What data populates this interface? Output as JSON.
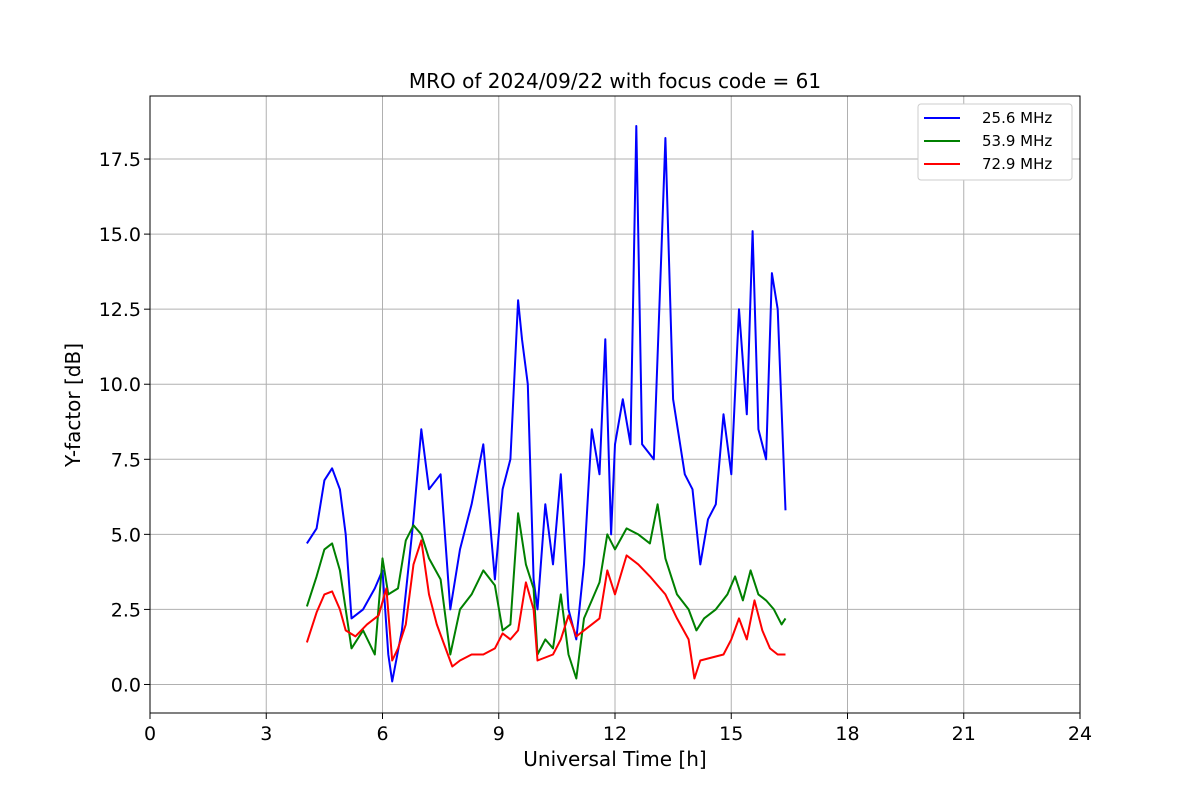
{
  "chart_data": {
    "type": "line",
    "title": "MRO of 2024/09/22 with focus code = 61",
    "xlabel": "Universal Time [h]",
    "ylabel": "Y-factor [dB]",
    "xlim": [
      0,
      24
    ],
    "ylim": [
      -0.95,
      19.6
    ],
    "xticks": [
      0,
      3,
      6,
      9,
      12,
      15,
      18,
      21,
      24
    ],
    "yticks": [
      0.0,
      2.5,
      5.0,
      7.5,
      10.0,
      12.5,
      15.0,
      17.5
    ],
    "ytick_labels": [
      "0.0",
      "2.5",
      "5.0",
      "7.5",
      "10.0",
      "12.5",
      "15.0",
      "17.5"
    ],
    "grid": true,
    "legend_position": "top-right",
    "series": [
      {
        "name": "25.6 MHz",
        "color": "#0000ff",
        "x": [
          4.05,
          4.3,
          4.5,
          4.7,
          4.9,
          5.05,
          5.2,
          5.5,
          5.8,
          6.0,
          6.15,
          6.25,
          6.5,
          6.8,
          7.0,
          7.2,
          7.5,
          7.75,
          8.0,
          8.3,
          8.6,
          8.9,
          9.1,
          9.3,
          9.5,
          9.6,
          9.75,
          9.9,
          10.0,
          10.2,
          10.4,
          10.6,
          10.8,
          11.0,
          11.2,
          11.4,
          11.6,
          11.75,
          11.9,
          12.0,
          12.2,
          12.4,
          12.55,
          12.7,
          13.0,
          13.2,
          13.3,
          13.5,
          13.8,
          14.0,
          14.2,
          14.4,
          14.6,
          14.8,
          15.0,
          15.2,
          15.4,
          15.55,
          15.7,
          15.9,
          16.05,
          16.2,
          16.4
        ],
        "y": [
          4.7,
          5.2,
          6.8,
          7.2,
          6.5,
          5.0,
          2.2,
          2.5,
          3.2,
          3.8,
          1.0,
          0.1,
          1.8,
          5.5,
          8.5,
          6.5,
          7.0,
          2.5,
          4.5,
          6.0,
          8.0,
          3.5,
          6.5,
          7.5,
          12.8,
          11.5,
          10.0,
          3.5,
          2.5,
          6.0,
          4.0,
          7.0,
          2.5,
          1.5,
          4.0,
          8.5,
          7.0,
          11.5,
          5.0,
          8.0,
          9.5,
          8.0,
          18.6,
          8.0,
          7.5,
          14.5,
          18.2,
          9.5,
          7.0,
          6.5,
          4.0,
          5.5,
          6.0,
          9.0,
          7.0,
          12.5,
          9.0,
          15.1,
          8.5,
          7.5,
          13.7,
          12.5,
          5.8
        ]
      },
      {
        "name": "53.9 MHz",
        "color": "#008000",
        "x": [
          4.05,
          4.3,
          4.5,
          4.7,
          4.9,
          5.05,
          5.2,
          5.5,
          5.8,
          6.0,
          6.15,
          6.4,
          6.6,
          6.8,
          7.0,
          7.2,
          7.5,
          7.75,
          8.0,
          8.3,
          8.6,
          8.9,
          9.1,
          9.3,
          9.5,
          9.7,
          9.9,
          10.0,
          10.2,
          10.4,
          10.6,
          10.8,
          11.0,
          11.2,
          11.4,
          11.6,
          11.8,
          12.0,
          12.3,
          12.6,
          12.9,
          13.1,
          13.3,
          13.6,
          13.9,
          14.1,
          14.3,
          14.6,
          14.9,
          15.1,
          15.3,
          15.5,
          15.7,
          15.9,
          16.1,
          16.3,
          16.4
        ],
        "y": [
          2.6,
          3.6,
          4.5,
          4.7,
          3.8,
          2.5,
          1.2,
          1.8,
          1.0,
          4.2,
          3.0,
          3.2,
          4.8,
          5.3,
          5.0,
          4.2,
          3.5,
          1.0,
          2.5,
          3.0,
          3.8,
          3.3,
          1.8,
          2.0,
          5.7,
          4.0,
          3.2,
          1.0,
          1.5,
          1.2,
          3.0,
          1.0,
          0.2,
          2.2,
          2.8,
          3.4,
          5.0,
          4.5,
          5.2,
          5.0,
          4.7,
          6.0,
          4.2,
          3.0,
          2.5,
          1.8,
          2.2,
          2.5,
          3.0,
          3.6,
          2.8,
          3.8,
          3.0,
          2.8,
          2.5,
          2.0,
          2.2
        ]
      },
      {
        "name": "72.9 MHz",
        "color": "#ff0000",
        "x": [
          4.05,
          4.3,
          4.5,
          4.7,
          4.9,
          5.05,
          5.3,
          5.6,
          5.9,
          6.1,
          6.25,
          6.4,
          6.6,
          6.8,
          7.0,
          7.2,
          7.4,
          7.6,
          7.8,
          8.0,
          8.3,
          8.6,
          8.9,
          9.1,
          9.3,
          9.5,
          9.7,
          9.9,
          10.0,
          10.2,
          10.4,
          10.6,
          10.8,
          11.0,
          11.2,
          11.4,
          11.6,
          11.8,
          12.0,
          12.3,
          12.6,
          12.9,
          13.1,
          13.3,
          13.6,
          13.9,
          14.05,
          14.2,
          14.5,
          14.8,
          15.0,
          15.2,
          15.4,
          15.6,
          15.8,
          16.0,
          16.2,
          16.4
        ],
        "y": [
          1.4,
          2.4,
          3.0,
          3.1,
          2.5,
          1.8,
          1.6,
          2.0,
          2.3,
          3.2,
          0.8,
          1.2,
          2.0,
          4.0,
          4.8,
          3.0,
          2.0,
          1.3,
          0.6,
          0.8,
          1.0,
          1.0,
          1.2,
          1.7,
          1.5,
          1.8,
          3.4,
          2.5,
          0.8,
          0.9,
          1.0,
          1.5,
          2.3,
          1.6,
          1.8,
          2.0,
          2.2,
          3.8,
          3.0,
          4.3,
          4.0,
          3.6,
          3.3,
          3.0,
          2.2,
          1.5,
          0.2,
          0.8,
          0.9,
          1.0,
          1.5,
          2.2,
          1.5,
          2.8,
          1.8,
          1.2,
          1.0,
          1.0
        ]
      }
    ]
  }
}
